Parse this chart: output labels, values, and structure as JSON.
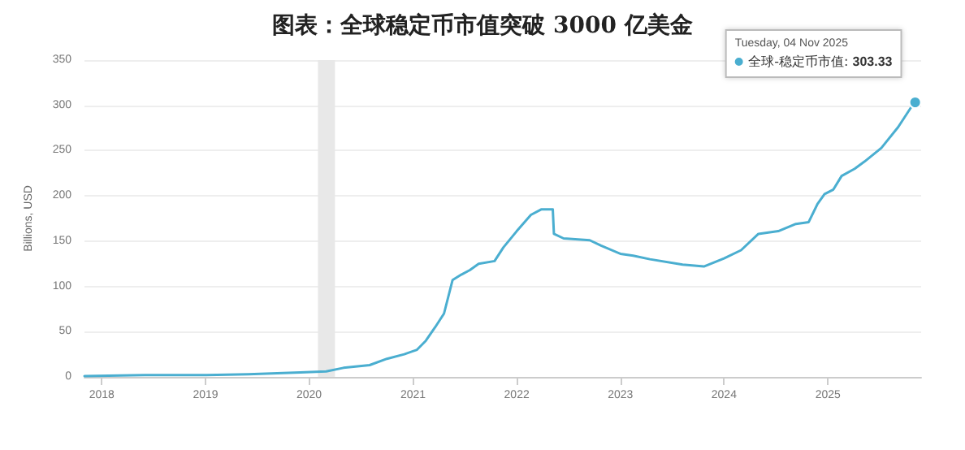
{
  "chart_data": {
    "type": "line",
    "title": "图表：全球稳定币市值突破 3000 亿美金",
    "ylabel": "Billions, USD",
    "x": [
      "2017-11",
      "2018-06",
      "2019-01",
      "2019-06",
      "2019-12",
      "2020-03",
      "2020-05",
      "2020-08",
      "2020-10",
      "2020-12",
      "2021-01-15",
      "2021-02-15",
      "2021-03-20",
      "2021-04-20",
      "2021-05-20",
      "2021-06-20",
      "2021-07-20",
      "2021-08-20",
      "2021-10-15",
      "2021-11-15",
      "2022-01-01",
      "2022-02-20",
      "2022-03-28",
      "2022-05-08",
      "2022-05-12",
      "2022-06-15",
      "2022-09-15",
      "2022-10-25",
      "2023-01-01",
      "2023-02-15",
      "2023-04-15",
      "2023-08-08",
      "2023-10-22",
      "2024-01-01",
      "2024-03-01",
      "2024-05-01",
      "2024-07-10",
      "2024-09-10",
      "2024-10-25",
      "2024-11-25",
      "2024-12-20",
      "2025-01-20",
      "2025-02-18",
      "2025-04-05",
      "2025-05-10",
      "2025-07-08",
      "2025-09-05",
      "2025-10-25",
      "2025-11-04"
    ],
    "series": [
      {
        "name": "全球-稳定币市值:",
        "color": "#4aaed0",
        "values": [
          1,
          2,
          2,
          3,
          5,
          6,
          10,
          13,
          20,
          25,
          30,
          40,
          55,
          70,
          107,
          113,
          118,
          125,
          128,
          143,
          161,
          179,
          185,
          185,
          158,
          153,
          151,
          145,
          136,
          134,
          130,
          124,
          122,
          131,
          140,
          158,
          161,
          169,
          171,
          191,
          202,
          207,
          222,
          230,
          238,
          253,
          276,
          300,
          303.33
        ],
        "value_labels": [
          null,
          null,
          null,
          null,
          null,
          null,
          null,
          null,
          null,
          null,
          null,
          null,
          null,
          null,
          null,
          null,
          null,
          null,
          null,
          null,
          null,
          null,
          null,
          null,
          null,
          null,
          null,
          null,
          null,
          null,
          null,
          null,
          null,
          null,
          null,
          null,
          null,
          null,
          null,
          null,
          null,
          null,
          null,
          null,
          null,
          null,
          null,
          null,
          "303.33"
        ]
      }
    ],
    "annotations": [
      "Tuesday, 04 Nov 2025"
    ],
    "bands": [
      {
        "axis": "x",
        "from": "2020-02",
        "to": "2020-04",
        "color": "#e8e8e8"
      }
    ],
    "xlim": [
      "2017-11",
      "2025-11-25"
    ],
    "xticks": [
      "2018",
      "2019",
      "2020",
      "2021",
      "2022",
      "2023",
      "2024",
      "2025"
    ],
    "ylim": [
      0,
      350
    ],
    "yticks": [
      0,
      50,
      100,
      150,
      200,
      250,
      300,
      350
    ],
    "grid": "y",
    "legend": "top right",
    "marker": "none",
    "line_style": "solid"
  }
}
